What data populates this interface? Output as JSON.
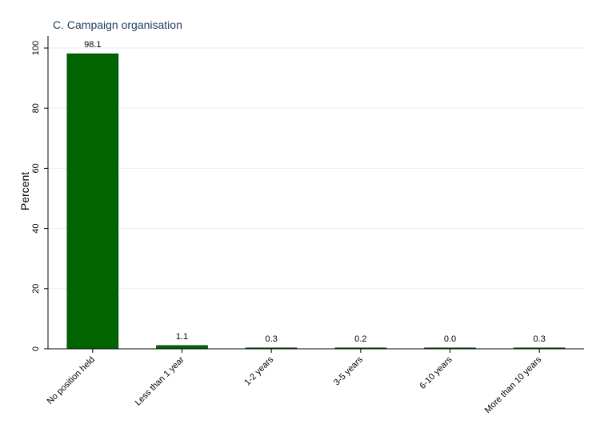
{
  "chart_data": {
    "type": "bar",
    "title": "C. Campaign organisation",
    "xlabel": "",
    "ylabel": "Percent",
    "categories": [
      "No position held",
      "Less than 1 year",
      "1-2 years",
      "3-5 years",
      "6-10 years",
      "More than 10 years"
    ],
    "values": [
      98.1,
      1.1,
      0.3,
      0.2,
      0.0,
      0.3
    ],
    "data_labels": [
      "98.1",
      "1.1",
      "0.3",
      "0.2",
      "0.0",
      "0.3"
    ],
    "ylim": [
      0,
      104
    ],
    "yticks": [
      0,
      20,
      40,
      60,
      80,
      100
    ],
    "grid": true,
    "legend": "none",
    "bar_color": "#006400"
  }
}
